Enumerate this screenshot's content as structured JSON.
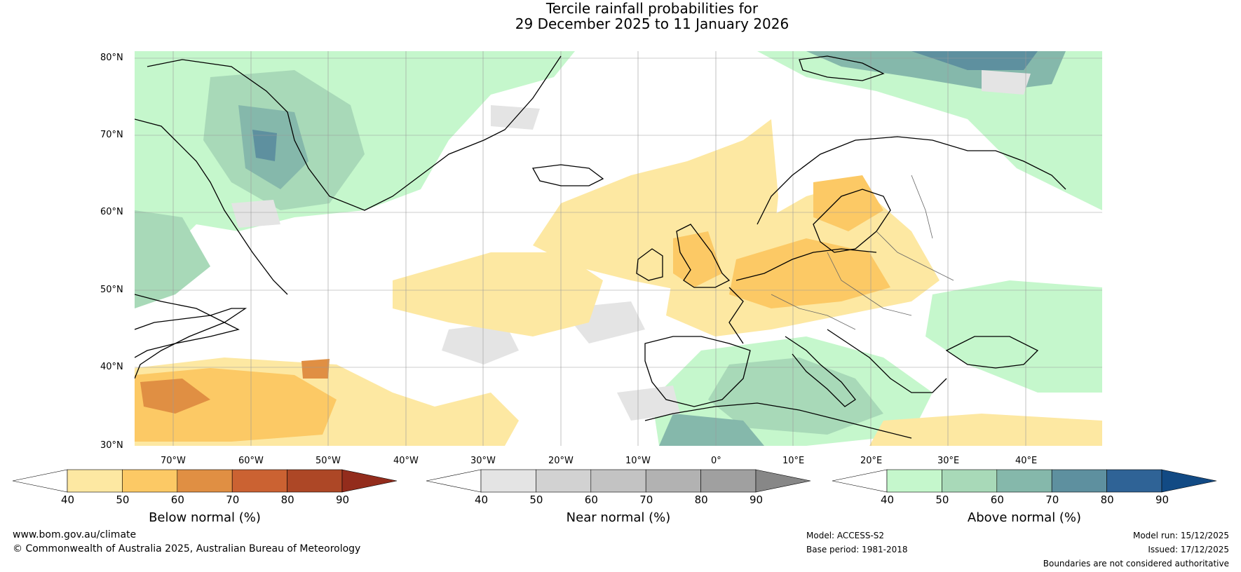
{
  "title": {
    "line1": "Tercile rainfall probabilities for",
    "line2": "29 December 2025 to 11 January 2026"
  },
  "map": {
    "lat_labels": [
      "80°N",
      "70°N",
      "60°N",
      "50°N",
      "40°N",
      "30°N"
    ],
    "lon_labels": [
      "70°W",
      "60°W",
      "50°W",
      "40°W",
      "30°W",
      "20°W",
      "10°W",
      "0°",
      "10°E",
      "20°E",
      "30°E",
      "40°E"
    ]
  },
  "colorbars": [
    {
      "name": "below",
      "label": "Below normal (%)",
      "ticks": [
        "40",
        "50",
        "60",
        "70",
        "80",
        "90"
      ],
      "colors": [
        "#ffffff",
        "#fde8a2",
        "#fcc965",
        "#e08f43",
        "#cb6232",
        "#ad4726",
        "#932c1c"
      ]
    },
    {
      "name": "near",
      "label": "Near normal (%)",
      "ticks": [
        "40",
        "50",
        "60",
        "70",
        "80",
        "90"
      ],
      "colors": [
        "#ffffff",
        "#e4e4e4",
        "#d2d2d2",
        "#c3c3c3",
        "#b2b2b2",
        "#a0a0a0",
        "#878787"
      ]
    },
    {
      "name": "above",
      "label": "Above normal (%)",
      "ticks": [
        "40",
        "50",
        "60",
        "70",
        "80",
        "90"
      ],
      "colors": [
        "#ffffff",
        "#c5f7cc",
        "#a8d9b8",
        "#85b8ab",
        "#5e909f",
        "#2f6396",
        "#124a84"
      ]
    }
  ],
  "footer": {
    "website": "www.bom.gov.au/climate",
    "copyright": "© Commonwealth of Australia 2025, Australian Bureau of Meteorology",
    "model": "Model: ACCESS-S2",
    "base_period": "Base period: 1981-2018",
    "model_run": "Model run: 15/12/2025",
    "issued": "Issued: 17/12/2025",
    "disclaimer": "Boundaries are not considered authoritative"
  }
}
